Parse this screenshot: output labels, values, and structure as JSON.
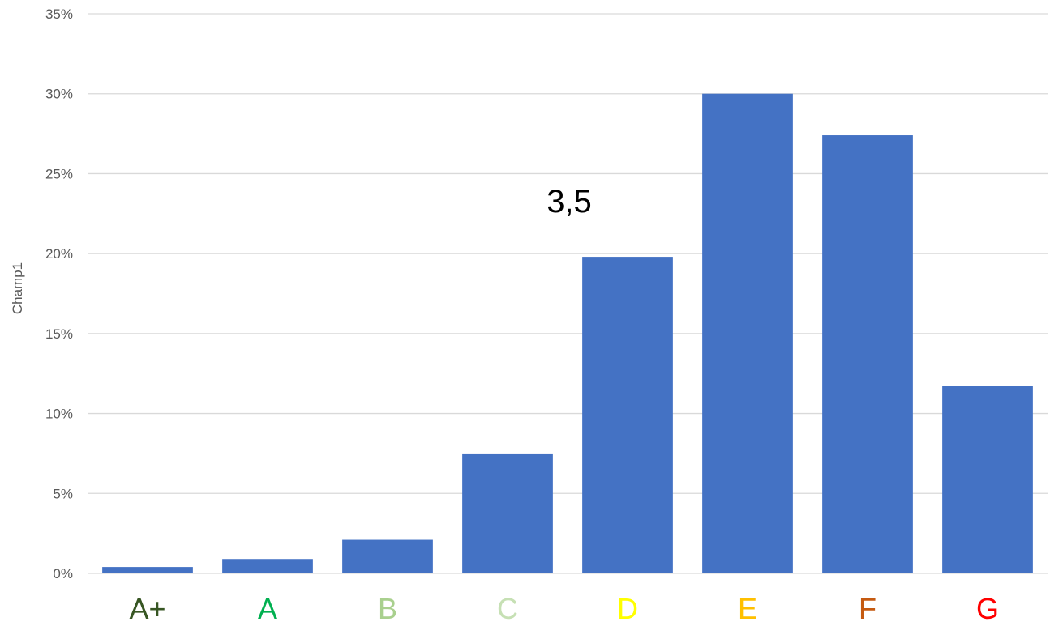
{
  "chart_data": {
    "type": "bar",
    "categories": [
      "A+",
      "A",
      "B",
      "C",
      "D",
      "E",
      "F",
      "G"
    ],
    "category_colors": [
      "#375623",
      "#00b050",
      "#a9d08e",
      "#c6e0b4",
      "#ffff00",
      "#ffc000",
      "#c55a11",
      "#ff0000"
    ],
    "values": [
      0.4,
      0.9,
      2.1,
      7.5,
      19.8,
      30.0,
      27.4,
      11.7
    ],
    "value_unit": "%",
    "bar_color": "#4472c4",
    "ylabel": "Champ1",
    "ylim": [
      0,
      35
    ],
    "yticks": [
      0,
      5,
      10,
      15,
      20,
      25,
      30,
      35
    ],
    "ytick_labels": [
      "0%",
      "5%",
      "10%",
      "15%",
      "20%",
      "25%",
      "30%",
      "35%"
    ],
    "grid": true,
    "annotation": "3,5"
  }
}
